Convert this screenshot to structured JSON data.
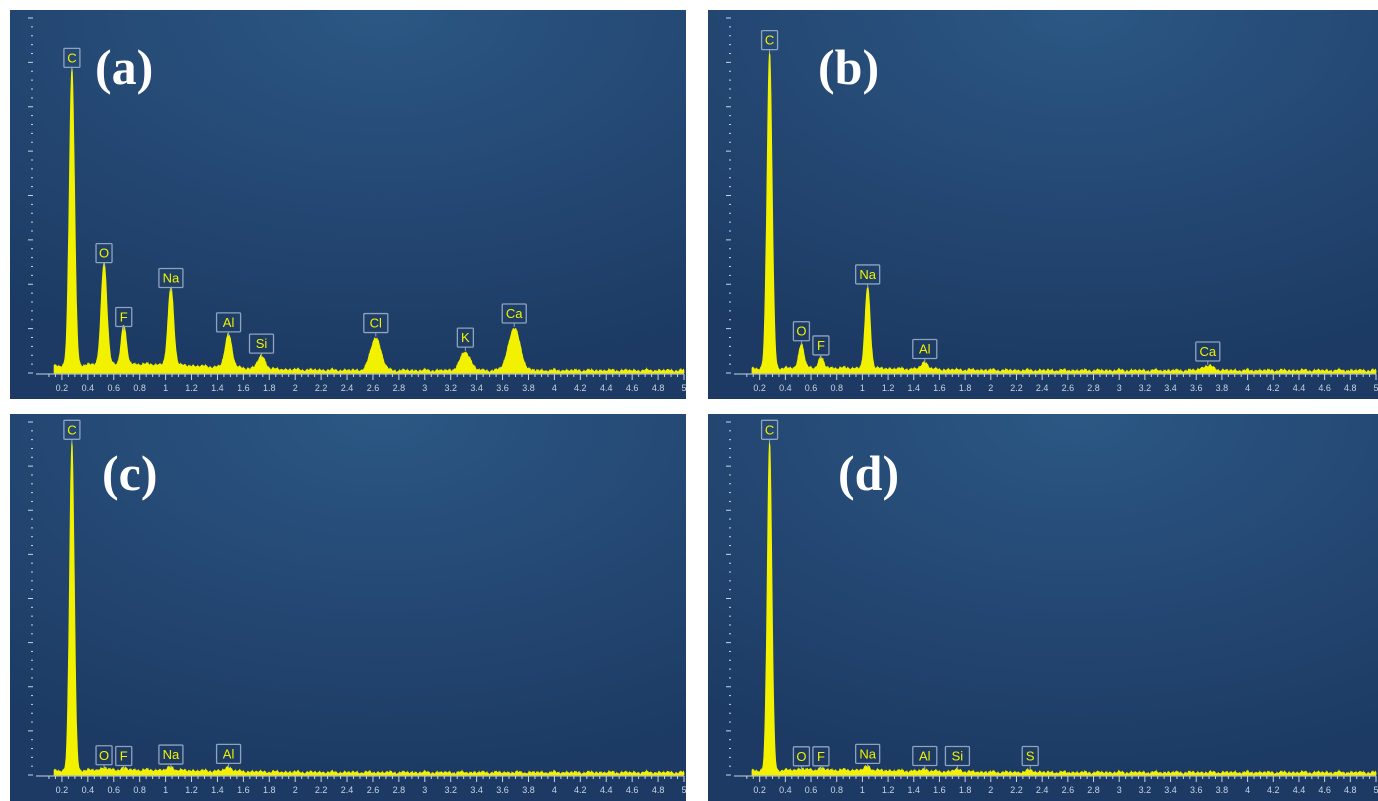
{
  "colors": {
    "background_dark": "#1c3a63",
    "background_light": "#2c5784",
    "spectrum": "#f2f200",
    "label_border": "#8fa3bf"
  },
  "chart_data": [
    {
      "type": "area",
      "panel_label": "(a)",
      "x": {
        "min": 0.0,
        "max": 5.0
      },
      "tick_labels": [
        "0.2",
        "0.4",
        "0.6",
        "0.8",
        "1",
        "1.2",
        "1.4",
        "1.6",
        "1.8",
        "2",
        "2.2",
        "2.4",
        "2.6",
        "2.8",
        "3",
        "3.2",
        "3.4",
        "3.6",
        "3.8",
        "4",
        "4.2",
        "4.4",
        "4.6",
        "4.8",
        "5"
      ],
      "peaks": [
        {
          "element": "C",
          "energy": 0.277,
          "intensity": 0.84,
          "width": 0.02
        },
        {
          "element": "O",
          "energy": 0.525,
          "intensity": 0.29,
          "width": 0.022
        },
        {
          "element": "F",
          "energy": 0.677,
          "intensity": 0.11,
          "width": 0.02
        },
        {
          "element": "Na",
          "energy": 1.041,
          "intensity": 0.22,
          "width": 0.022
        },
        {
          "element": "Al",
          "energy": 1.486,
          "intensity": 0.095,
          "width": 0.026
        },
        {
          "element": "Si",
          "energy": 1.74,
          "intensity": 0.035,
          "width": 0.03
        },
        {
          "element": "Cl",
          "energy": 2.622,
          "intensity": 0.093,
          "width": 0.04
        },
        {
          "element": "K",
          "energy": 3.313,
          "intensity": 0.052,
          "width": 0.04
        },
        {
          "element": "Ca",
          "energy": 3.69,
          "intensity": 0.12,
          "width": 0.045
        }
      ]
    },
    {
      "type": "area",
      "panel_label": "(b)",
      "x": {
        "min": 0.0,
        "max": 5.0
      },
      "tick_labels": [
        "0.2",
        "0.4",
        "0.6",
        "0.8",
        "1",
        "1.2",
        "1.4",
        "1.6",
        "1.8",
        "2",
        "2.2",
        "2.4",
        "2.6",
        "2.8",
        "3",
        "3.2",
        "3.4",
        "3.6",
        "3.8",
        "4",
        "4.2",
        "4.4",
        "4.6",
        "4.8",
        "5"
      ],
      "peaks": [
        {
          "element": "C",
          "energy": 0.277,
          "intensity": 0.89,
          "width": 0.02
        },
        {
          "element": "O",
          "energy": 0.525,
          "intensity": 0.07,
          "width": 0.02
        },
        {
          "element": "F",
          "energy": 0.677,
          "intensity": 0.03,
          "width": 0.02
        },
        {
          "element": "Na",
          "energy": 1.041,
          "intensity": 0.23,
          "width": 0.02
        },
        {
          "element": "Al",
          "energy": 1.486,
          "intensity": 0.02,
          "width": 0.026
        },
        {
          "element": "Ca",
          "energy": 3.69,
          "intensity": 0.013,
          "width": 0.045
        }
      ]
    },
    {
      "type": "area",
      "panel_label": "(c)",
      "x": {
        "min": 0.0,
        "max": 5.0
      },
      "tick_labels": [
        "0.2",
        "0.4",
        "0.6",
        "0.8",
        "1",
        "1.2",
        "1.4",
        "1.6",
        "1.8",
        "2",
        "2.2",
        "2.4",
        "2.6",
        "2.8",
        "3",
        "3.2",
        "3.4",
        "3.6",
        "3.8",
        "4",
        "4.2",
        "4.4",
        "4.6",
        "4.8",
        "5"
      ],
      "peaks": [
        {
          "element": "C",
          "energy": 0.277,
          "intensity": 0.93,
          "width": 0.018
        },
        {
          "element": "O",
          "energy": 0.525,
          "intensity": 0.008,
          "width": 0.02
        },
        {
          "element": "F",
          "energy": 0.677,
          "intensity": 0.006,
          "width": 0.02
        },
        {
          "element": "Na",
          "energy": 1.041,
          "intensity": 0.01,
          "width": 0.022
        },
        {
          "element": "Al",
          "energy": 1.486,
          "intensity": 0.012,
          "width": 0.026
        }
      ]
    },
    {
      "type": "area",
      "panel_label": "(d)",
      "x": {
        "min": 0.0,
        "max": 5.0
      },
      "tick_labels": [
        "0.2",
        "0.4",
        "0.6",
        "0.8",
        "1",
        "1.2",
        "1.4",
        "1.6",
        "1.8",
        "2",
        "2.2",
        "2.4",
        "2.6",
        "2.8",
        "3",
        "3.2",
        "3.4",
        "3.6",
        "3.8",
        "4",
        "4.2",
        "4.4",
        "4.6",
        "4.8",
        "5"
      ],
      "peaks": [
        {
          "element": "C",
          "energy": 0.277,
          "intensity": 0.93,
          "width": 0.018
        },
        {
          "element": "O",
          "energy": 0.525,
          "intensity": 0.005,
          "width": 0.02
        },
        {
          "element": "F",
          "energy": 0.677,
          "intensity": 0.005,
          "width": 0.02
        },
        {
          "element": "Na",
          "energy": 1.041,
          "intensity": 0.012,
          "width": 0.022
        },
        {
          "element": "Al",
          "energy": 1.486,
          "intensity": 0.006,
          "width": 0.026
        },
        {
          "element": "Si",
          "energy": 1.74,
          "intensity": 0.006,
          "width": 0.03
        },
        {
          "element": "S",
          "energy": 2.307,
          "intensity": 0.006,
          "width": 0.03
        }
      ]
    }
  ]
}
